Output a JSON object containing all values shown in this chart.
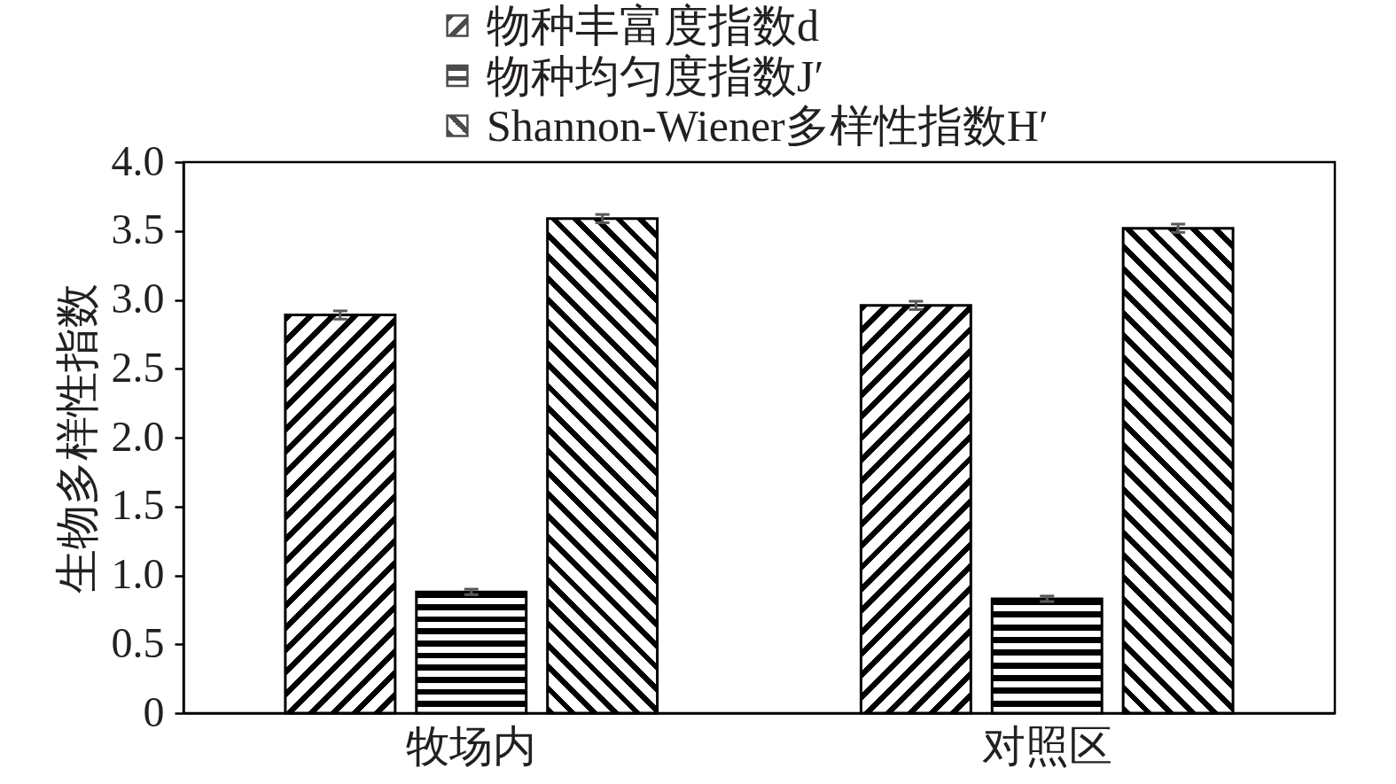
{
  "chart_data": {
    "type": "bar",
    "ylabel": "生物多样性指数",
    "categories": [
      "牧场内",
      "对照区"
    ],
    "series": [
      {
        "name": "物种丰富度指数d",
        "color": "#000000",
        "values": [
          2.89,
          2.96
        ],
        "errors": [
          0.03,
          0.03
        ]
      },
      {
        "name": "物种均匀度指数J′",
        "color": "#000000",
        "values": [
          0.88,
          0.83
        ],
        "errors": [
          0.02,
          0.02
        ]
      },
      {
        "name": "Shannon-Wiener多样性指数H′",
        "color": "#000000",
        "values": [
          3.59,
          3.52
        ],
        "errors": [
          0.03,
          0.03
        ]
      }
    ],
    "ylim": [
      0,
      4
    ],
    "yticks": [
      0,
      0.5,
      {
        "value": 1,
        "label": "1.0"
      },
      1.5,
      {
        "value": 2,
        "label": "2.0"
      },
      2.5,
      {
        "value": 3,
        "label": "3.0"
      },
      3.5,
      {
        "value": 4,
        "label": "4.0"
      }
    ],
    "legend": "top"
  }
}
